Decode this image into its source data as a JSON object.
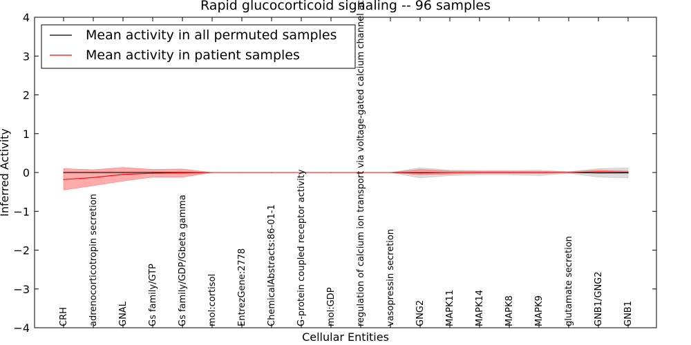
{
  "chart_data": {
    "type": "line",
    "title": "Rapid glucocorticoid signaling -- 96 samples",
    "xlabel": "Cellular Entities",
    "ylabel": "Inferred Activity",
    "ylim": [
      -4,
      4
    ],
    "yticks": [
      -4,
      -3,
      -2,
      -1,
      0,
      1,
      2,
      3,
      4
    ],
    "ytick_labels": [
      "−4",
      "−3",
      "−2",
      "−1",
      "0",
      "1",
      "2",
      "3",
      "4"
    ],
    "grid": false,
    "legend_position": "top-left",
    "categories": [
      "CRH",
      "adrenocorticotropin secretion",
      "GNAL",
      "Gs family/GTP",
      "Gs family/GDP/Gbeta gamma",
      "mol:cortisol",
      "EntrezGene:2778",
      "ChemicalAbstracts:86-01-1",
      "G-protein coupled receptor activity",
      "mol:GDP",
      "regulation of calcium ion transport via voltage-gated calcium channel activity",
      "vasopressin secretion",
      "GNG2",
      "MAPK11",
      "MAPK14",
      "MAPK8",
      "MAPK9",
      "glutamate secretion",
      "GNB1/GNG2",
      "GNB1"
    ],
    "series": [
      {
        "name": "Mean activity in all permuted samples",
        "color": "#000000",
        "band_color": "#bbbbbb",
        "values": [
          0.0,
          0.0,
          0.0,
          0.0,
          0.0,
          0.0,
          0.0,
          0.0,
          0.0,
          0.0,
          0.0,
          0.0,
          -0.01,
          0.0,
          0.0,
          0.0,
          0.0,
          0.0,
          -0.01,
          -0.01
        ],
        "lower": [
          -0.02,
          -0.02,
          -0.02,
          -0.02,
          -0.02,
          0.0,
          0.0,
          0.0,
          0.0,
          0.0,
          0.0,
          0.0,
          -0.14,
          -0.08,
          -0.06,
          -0.06,
          -0.08,
          -0.02,
          -0.12,
          -0.14
        ],
        "upper": [
          0.02,
          0.02,
          0.02,
          0.02,
          0.02,
          0.0,
          0.0,
          0.0,
          0.0,
          0.0,
          0.0,
          0.0,
          0.12,
          0.06,
          0.05,
          0.05,
          0.06,
          0.02,
          0.1,
          0.12
        ]
      },
      {
        "name": "Mean activity in patient samples",
        "color": "#ff0000",
        "band_color": "#ff6666",
        "values": [
          -0.18,
          -0.13,
          -0.05,
          -0.02,
          -0.01,
          0.0,
          0.0,
          0.0,
          0.0,
          0.0,
          0.0,
          0.0,
          0.0,
          0.0,
          0.0,
          0.0,
          0.0,
          0.0,
          0.02,
          0.01
        ],
        "lower": [
          -0.45,
          -0.34,
          -0.22,
          -0.12,
          -0.12,
          0.0,
          0.0,
          0.0,
          0.0,
          0.0,
          0.0,
          0.0,
          -0.06,
          -0.04,
          -0.02,
          -0.02,
          -0.02,
          0.0,
          -0.02,
          -0.01
        ],
        "upper": [
          0.1,
          0.07,
          0.13,
          0.08,
          0.09,
          0.0,
          0.0,
          0.0,
          0.0,
          0.0,
          0.0,
          0.0,
          0.08,
          0.04,
          0.03,
          0.03,
          0.03,
          0.02,
          0.06,
          0.04
        ]
      }
    ]
  }
}
